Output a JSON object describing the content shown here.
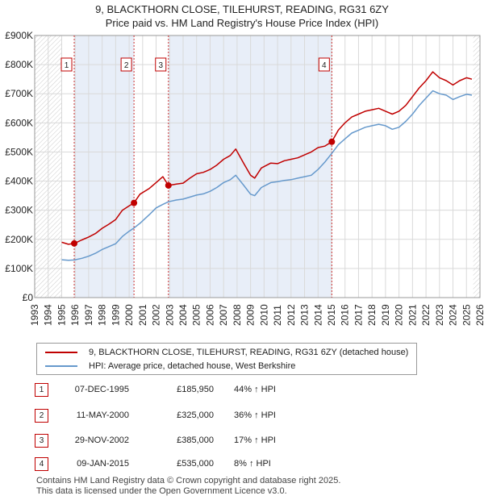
{
  "title_line1": "9, BLACKTHORN CLOSE, TILEHURST, READING, RG31 6ZY",
  "title_line2": "Price paid vs. HM Land Registry's House Price Index (HPI)",
  "legend": {
    "property": "9, BLACKTHORN CLOSE, TILEHURST, READING, RG31 6ZY (detached house)",
    "hpi": "HPI: Average price, detached house, West Berkshire"
  },
  "colors": {
    "property": "#c00000",
    "hpi": "#6699cc",
    "shade": "#e8eef8",
    "grid": "#d9d9d9"
  },
  "transactions": [
    {
      "num": "1",
      "date": "07-DEC-1995",
      "price": "£185,950",
      "hpi": "44% ↑ HPI"
    },
    {
      "num": "2",
      "date": "11-MAY-2000",
      "price": "£325,000",
      "hpi": "36% ↑ HPI"
    },
    {
      "num": "3",
      "date": "29-NOV-2002",
      "price": "£385,000",
      "hpi": "17% ↑ HPI"
    },
    {
      "num": "4",
      "date": "09-JAN-2015",
      "price": "£535,000",
      "hpi": "8% ↑ HPI"
    }
  ],
  "footer": {
    "line1": "Contains HM Land Registry data © Crown copyright and database right 2025.",
    "line2": "This data is licensed under the Open Government Licence v3.0."
  },
  "chart_data": {
    "type": "line",
    "xlim": [
      1993,
      2026
    ],
    "ylim": [
      0,
      900000
    ],
    "yticks": [
      0,
      100000,
      200000,
      300000,
      400000,
      500000,
      600000,
      700000,
      800000,
      900000
    ],
    "ytick_labels": [
      "£0",
      "£100K",
      "£200K",
      "£300K",
      "£400K",
      "£500K",
      "£600K",
      "£700K",
      "£800K",
      "£900K"
    ],
    "xticks": [
      1993,
      1994,
      1995,
      1996,
      1997,
      1998,
      1999,
      2000,
      2001,
      2002,
      2003,
      2004,
      2005,
      2006,
      2007,
      2008,
      2009,
      2010,
      2011,
      2012,
      2013,
      2014,
      2015,
      2016,
      2017,
      2018,
      2019,
      2020,
      2021,
      2022,
      2023,
      2024,
      2025,
      2026
    ],
    "data_range": [
      1995.0,
      2025.5
    ],
    "sales": [
      {
        "label": "1",
        "x": 1995.93,
        "y": 185950
      },
      {
        "label": "2",
        "x": 2000.36,
        "y": 325000
      },
      {
        "label": "3",
        "x": 2002.91,
        "y": 385000
      },
      {
        "label": "4",
        "x": 2015.02,
        "y": 535000
      }
    ],
    "series": [
      {
        "name": "9, BLACKTHORN CLOSE, TILEHURST, READING, RG31 6ZY (detached house)",
        "x": [
          1995.0,
          1995.5,
          1995.93,
          1996.5,
          1997.0,
          1997.5,
          1998.0,
          1998.5,
          1999.0,
          1999.5,
          2000.0,
          2000.36,
          2000.8,
          2001.5,
          2002.0,
          2002.5,
          2002.91,
          2003.5,
          2004.0,
          2004.5,
          2005.0,
          2005.5,
          2006.0,
          2006.5,
          2007.0,
          2007.5,
          2007.9,
          2008.5,
          2009.0,
          2009.3,
          2009.8,
          2010.5,
          2011.0,
          2011.5,
          2012.0,
          2012.5,
          2013.0,
          2013.5,
          2014.0,
          2014.5,
          2015.02,
          2015.5,
          2016.0,
          2016.5,
          2017.0,
          2017.5,
          2018.0,
          2018.5,
          2019.0,
          2019.5,
          2020.0,
          2020.5,
          2021.0,
          2021.5,
          2022.0,
          2022.5,
          2023.0,
          2023.5,
          2024.0,
          2024.5,
          2025.0,
          2025.4
        ],
        "y": [
          190000,
          183000,
          185950,
          198000,
          208000,
          220000,
          238000,
          252000,
          268000,
          300000,
          315000,
          325000,
          355000,
          375000,
          395000,
          415000,
          385000,
          390000,
          393000,
          410000,
          425000,
          430000,
          440000,
          455000,
          475000,
          488000,
          510000,
          460000,
          420000,
          410000,
          445000,
          462000,
          460000,
          470000,
          475000,
          480000,
          490000,
          500000,
          515000,
          520000,
          535000,
          575000,
          600000,
          620000,
          630000,
          640000,
          645000,
          650000,
          640000,
          630000,
          640000,
          660000,
          690000,
          720000,
          745000,
          775000,
          755000,
          745000,
          730000,
          745000,
          755000,
          750000
        ]
      },
      {
        "name": "HPI: Average price, detached house, West Berkshire",
        "x": [
          1995.0,
          1995.5,
          1995.93,
          1996.5,
          1997.0,
          1997.5,
          1998.0,
          1998.5,
          1999.0,
          1999.5,
          2000.0,
          2000.36,
          2000.8,
          2001.5,
          2002.0,
          2002.5,
          2002.91,
          2003.5,
          2004.0,
          2004.5,
          2005.0,
          2005.5,
          2006.0,
          2006.5,
          2007.0,
          2007.5,
          2007.9,
          2008.5,
          2009.0,
          2009.3,
          2009.8,
          2010.5,
          2011.0,
          2011.5,
          2012.0,
          2012.5,
          2013.0,
          2013.5,
          2014.0,
          2014.5,
          2015.02,
          2015.5,
          2016.0,
          2016.5,
          2017.0,
          2017.5,
          2018.0,
          2018.5,
          2019.0,
          2019.5,
          2020.0,
          2020.5,
          2021.0,
          2021.5,
          2022.0,
          2022.5,
          2023.0,
          2023.5,
          2024.0,
          2024.5,
          2025.0,
          2025.4
        ],
        "y": [
          130000,
          128000,
          129000,
          135000,
          142000,
          152000,
          165000,
          175000,
          185000,
          210000,
          228000,
          239000,
          255000,
          285000,
          308000,
          320000,
          329000,
          335000,
          338000,
          345000,
          352000,
          356000,
          365000,
          378000,
          395000,
          405000,
          420000,
          385000,
          355000,
          350000,
          378000,
          395000,
          398000,
          402000,
          405000,
          410000,
          415000,
          420000,
          440000,
          465000,
          495000,
          525000,
          545000,
          565000,
          575000,
          585000,
          590000,
          595000,
          590000,
          578000,
          585000,
          605000,
          630000,
          660000,
          685000,
          710000,
          700000,
          695000,
          680000,
          690000,
          698000,
          695000
        ]
      }
    ]
  }
}
